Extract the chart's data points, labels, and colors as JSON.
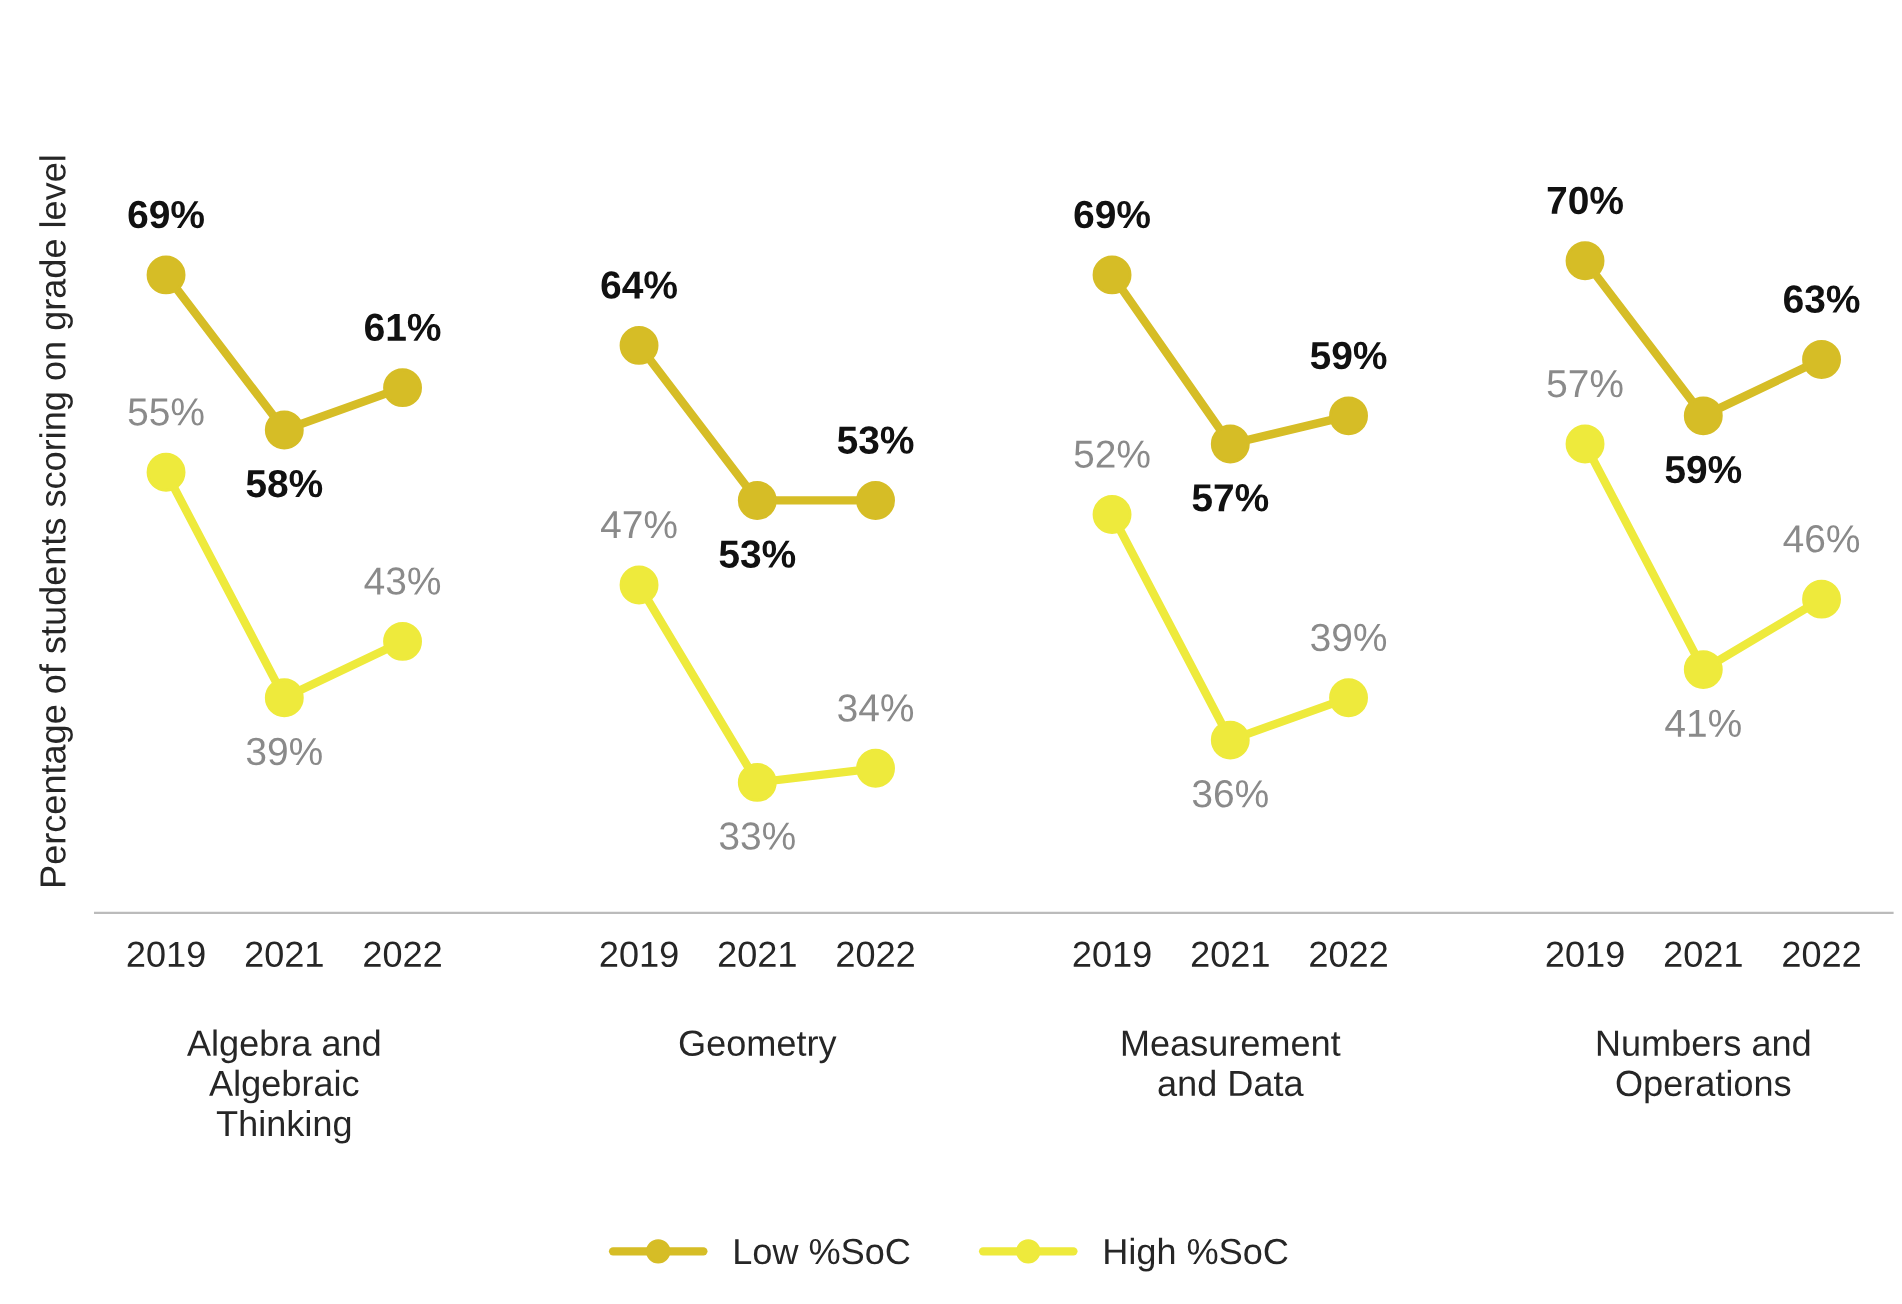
{
  "chart_data": {
    "type": "line",
    "categories": [
      "2019",
      "2021",
      "2022",
      null,
      "2019",
      "2021",
      "2022",
      null,
      "2019",
      "2021",
      "2022",
      null,
      "2019",
      "2021",
      "2022"
    ],
    "ylabel": "Percentage of students scoring on grade level",
    "annotations": [
      "Algebra and\nAlgebraic\nThinking",
      "Geometry",
      "Measurement\nand Data",
      "Numbers and\nOperations"
    ],
    "marker": "circle",
    "legend": "bottom",
    "grid": false,
    "series": [
      {
        "name": "Low %SoC",
        "color": "#d6bd26",
        "values": [
          69,
          58,
          61,
          null,
          64,
          53,
          53,
          null,
          69,
          57,
          59,
          null,
          70,
          59,
          63
        ],
        "value_labels": [
          "69%",
          "58%",
          "61%",
          null,
          "64%",
          "53%",
          "53%",
          null,
          "69%",
          "57%",
          "59%",
          null,
          "70%",
          "59%",
          "63%"
        ]
      },
      {
        "name": "High %SoC",
        "color": "#eeea3c",
        "values": [
          55,
          39,
          43,
          null,
          47,
          33,
          34,
          null,
          52,
          36,
          39,
          null,
          57,
          41,
          46
        ],
        "value_labels": [
          "55%",
          "39%",
          "43%",
          null,
          "47%",
          "33%",
          "34%",
          null,
          "52%",
          "36%",
          "39%",
          null,
          "57%",
          "41%",
          "46%"
        ]
      }
    ]
  }
}
